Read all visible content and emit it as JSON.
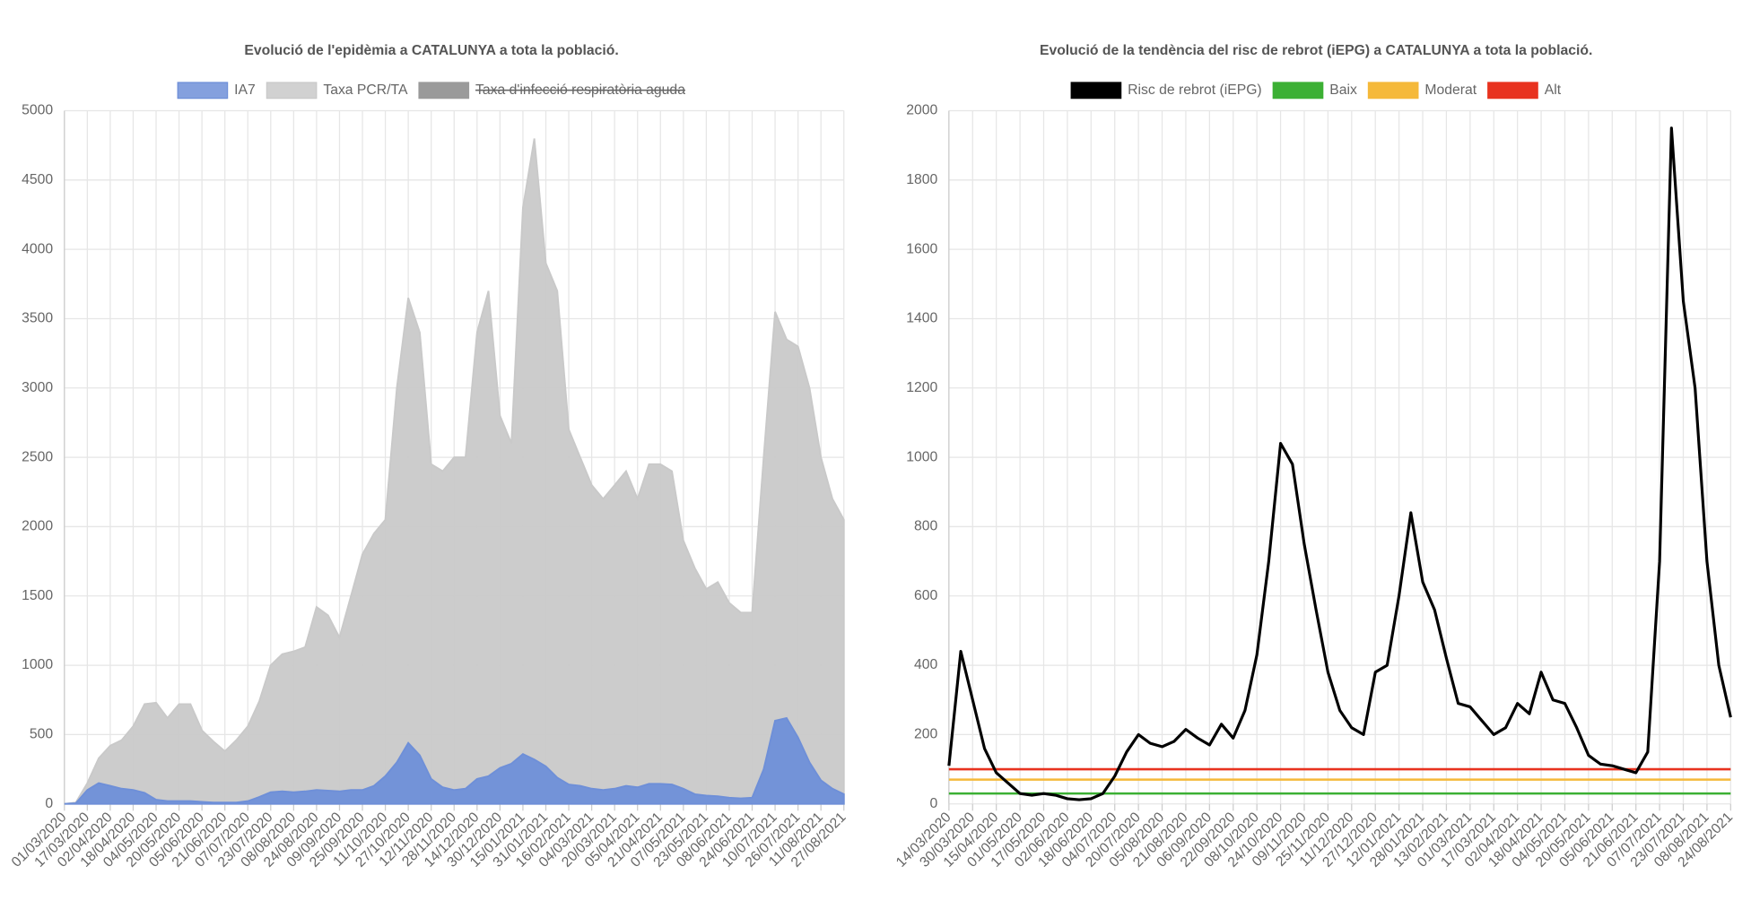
{
  "chart_data": [
    {
      "type": "area",
      "title": "Evolució de l'epidèmia a CATALUNYA a tota la població.",
      "categories": [
        "01/03/2020",
        null,
        "17/03/2020",
        null,
        "02/04/2020",
        null,
        "18/04/2020",
        null,
        "04/05/2020",
        null,
        "20/05/2020",
        null,
        "05/06/2020",
        null,
        "21/06/2020",
        null,
        "07/07/2020",
        null,
        "23/07/2020",
        null,
        "08/08/2020",
        null,
        "24/08/2020",
        null,
        "09/09/2020",
        null,
        "25/09/2020",
        null,
        "11/10/2020",
        null,
        "27/10/2020",
        null,
        "12/11/2020",
        null,
        "28/11/2020",
        null,
        "14/12/2020",
        null,
        "30/12/2020",
        null,
        "15/01/2021",
        null,
        "31/01/2021",
        null,
        "16/02/2021",
        null,
        "04/03/2021",
        null,
        "20/03/2021",
        null,
        "05/04/2021",
        null,
        "21/04/2021",
        null,
        "07/05/2021",
        null,
        "23/05/2021",
        null,
        "08/06/2021",
        null,
        "24/06/2021",
        null,
        "10/07/2021",
        null,
        "26/07/2021",
        null,
        "11/08/2021",
        null,
        "27/08/2021"
      ],
      "series": [
        {
          "name": "IA7",
          "color": "#6e8fd8",
          "values": [
            0,
            5,
            100,
            150,
            130,
            110,
            100,
            80,
            30,
            20,
            20,
            20,
            15,
            10,
            10,
            10,
            20,
            50,
            85,
            90,
            85,
            90,
            100,
            95,
            90,
            100,
            100,
            130,
            200,
            300,
            440,
            350,
            180,
            120,
            100,
            110,
            180,
            200,
            260,
            290,
            360,
            320,
            270,
            190,
            140,
            130,
            110,
            100,
            110,
            130,
            120,
            145,
            145,
            140,
            110,
            70,
            60,
            55,
            45,
            40,
            45,
            250,
            600,
            620,
            480,
            300,
            170,
            110,
            70
          ]
        },
        {
          "name": "Taxa PCR/TA",
          "color": "#c9c9c9",
          "values": [
            0,
            10,
            150,
            330,
            420,
            460,
            560,
            720,
            730,
            620,
            720,
            720,
            530,
            450,
            380,
            460,
            560,
            740,
            1000,
            1080,
            1100,
            1130,
            1420,
            1360,
            1200,
            1500,
            1800,
            1950,
            2050,
            3000,
            3650,
            3400,
            2450,
            2400,
            2500,
            2500,
            3400,
            3700,
            2800,
            2600,
            4300,
            4800,
            3900,
            3700,
            2700,
            2500,
            2300,
            2200,
            2300,
            2400,
            2200,
            2450,
            2450,
            2400,
            1900,
            1700,
            1550,
            1600,
            1450,
            1380,
            1380,
            2500,
            3550,
            3350,
            3300,
            3000,
            2500,
            2200,
            2050
          ]
        }
      ],
      "hidden_series": [
        {
          "name": "Taxa d'infecció respiratòria aguda",
          "color": "#9a9a9a"
        }
      ],
      "ylim": [
        0,
        5000
      ],
      "yticks": [
        0,
        500,
        1000,
        1500,
        2000,
        2500,
        3000,
        3500,
        4000,
        4500,
        5000
      ],
      "grid": true
    },
    {
      "type": "line",
      "title": "Evolució de la tendència del risc de rebrot (iEPG) a CATALUNYA a tota la població.",
      "categories": [
        "14/03/2020",
        null,
        "30/03/2020",
        null,
        "15/04/2020",
        null,
        "01/05/2020",
        null,
        "17/05/2020",
        null,
        "02/06/2020",
        null,
        "18/06/2020",
        null,
        "04/07/2020",
        null,
        "20/07/2020",
        null,
        "05/08/2020",
        null,
        "21/08/2020",
        null,
        "06/09/2020",
        null,
        "22/09/2020",
        null,
        "08/10/2020",
        null,
        "24/10/2020",
        null,
        "09/11/2020",
        null,
        "25/11/2020",
        null,
        "11/12/2020",
        null,
        "27/12/2020",
        null,
        "12/01/2021",
        null,
        "28/01/2021",
        null,
        "13/02/2021",
        null,
        "01/03/2021",
        null,
        "17/03/2021",
        null,
        "02/04/2021",
        null,
        "18/04/2021",
        null,
        "04/05/2021",
        null,
        "20/05/2021",
        null,
        "05/06/2021",
        null,
        "21/06/2021",
        null,
        "07/07/2021",
        null,
        "23/07/2021",
        null,
        "08/08/2021",
        null,
        "24/08/2021"
      ],
      "series": [
        {
          "name": "Risc de rebrot (iEPG)",
          "color": "#000000",
          "values": [
            110,
            440,
            300,
            160,
            90,
            60,
            30,
            25,
            30,
            25,
            15,
            12,
            15,
            30,
            80,
            150,
            200,
            175,
            165,
            180,
            215,
            190,
            170,
            230,
            190,
            270,
            430,
            700,
            1040,
            980,
            750,
            560,
            380,
            270,
            220,
            200,
            380,
            400,
            600,
            840,
            640,
            560,
            420,
            290,
            280,
            240,
            200,
            220,
            290,
            260,
            380,
            300,
            290,
            220,
            140,
            115,
            110,
            100,
            90,
            150,
            700,
            1950,
            1450,
            1200,
            700,
            400,
            250
          ]
        }
      ],
      "reference_lines": [
        {
          "name": "Baix",
          "color": "#3cb034",
          "value": 30
        },
        {
          "name": "Moderat",
          "color": "#f5b93a",
          "value": 70
        },
        {
          "name": "Alt",
          "color": "#e8321f",
          "value": 100
        }
      ],
      "ylim": [
        0,
        2000
      ],
      "yticks": [
        0,
        200,
        400,
        600,
        800,
        1000,
        1200,
        1400,
        1600,
        1800,
        2000
      ],
      "grid": true
    }
  ]
}
